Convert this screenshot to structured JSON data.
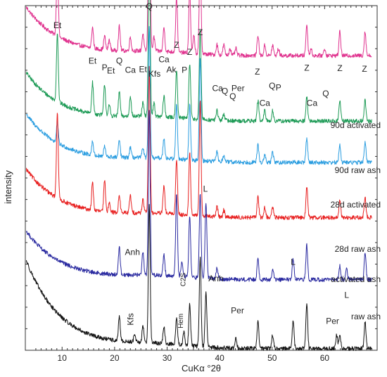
{
  "chart_data": {
    "type": "line",
    "title": "",
    "xlabel": "CuKα °2θ",
    "ylabel": "intensity",
    "xlim": [
      3,
      70
    ],
    "x_ticks": [
      10,
      20,
      30,
      40,
      50,
      60
    ],
    "y_ticks_shown": false,
    "grid": false,
    "series": [
      {
        "name": "90d activated",
        "color": "#e0338f",
        "baseline": 0.855,
        "low_decay": 0.14,
        "peaks": [
          [
            9.1,
            0.22
          ],
          [
            15.8,
            0.06
          ],
          [
            18.1,
            0.04
          ],
          [
            19.0,
            0.03
          ],
          [
            20.9,
            0.07
          ],
          [
            23.0,
            0.04
          ],
          [
            25.4,
            0.05
          ],
          [
            26.6,
            0.63
          ],
          [
            27.5,
            0.04
          ],
          [
            29.4,
            0.07
          ],
          [
            31.8,
            0.16
          ],
          [
            34.3,
            0.18
          ],
          [
            35.1,
            0.05
          ],
          [
            36.3,
            0.29
          ],
          [
            39.5,
            0.03
          ],
          [
            40.8,
            0.03
          ],
          [
            42.0,
            0.02
          ],
          [
            43.1,
            0.02
          ],
          [
            47.3,
            0.06
          ],
          [
            48.6,
            0.03
          ],
          [
            50.1,
            0.03
          ],
          [
            51.2,
            0.02
          ],
          [
            56.6,
            0.09
          ],
          [
            57.4,
            0.02
          ],
          [
            60.0,
            0.02
          ],
          [
            62.9,
            0.07
          ],
          [
            67.7,
            0.07
          ]
        ]
      },
      {
        "name": "90d raw ash",
        "color": "#1c9a55",
        "baseline": 0.665,
        "low_decay": 0.14,
        "peaks": [
          [
            9.1,
            0.2
          ],
          [
            15.8,
            0.09
          ],
          [
            18.1,
            0.09
          ],
          [
            19.0,
            0.03
          ],
          [
            20.9,
            0.07
          ],
          [
            23.0,
            0.06
          ],
          [
            25.4,
            0.04
          ],
          [
            26.6,
            0.5
          ],
          [
            27.5,
            0.04
          ],
          [
            29.4,
            0.06
          ],
          [
            31.8,
            0.14
          ],
          [
            34.3,
            0.16
          ],
          [
            36.3,
            0.26
          ],
          [
            39.5,
            0.03
          ],
          [
            40.8,
            0.02
          ],
          [
            47.3,
            0.06
          ],
          [
            48.6,
            0.03
          ],
          [
            50.1,
            0.03
          ],
          [
            56.6,
            0.07
          ],
          [
            62.9,
            0.06
          ],
          [
            67.7,
            0.06
          ]
        ]
      },
      {
        "name": "28d activated",
        "color": "#2a9de0",
        "baseline": 0.545,
        "low_decay": 0.14,
        "peaks": [
          [
            9.1,
            0.06
          ],
          [
            15.8,
            0.04
          ],
          [
            18.1,
            0.03
          ],
          [
            20.9,
            0.05
          ],
          [
            23.0,
            0.03
          ],
          [
            25.4,
            0.03
          ],
          [
            26.6,
            0.38
          ],
          [
            29.4,
            0.06
          ],
          [
            31.8,
            0.16
          ],
          [
            34.3,
            0.16
          ],
          [
            36.3,
            0.3
          ],
          [
            39.5,
            0.03
          ],
          [
            40.8,
            0.02
          ],
          [
            47.3,
            0.05
          ],
          [
            48.6,
            0.02
          ],
          [
            50.1,
            0.03
          ],
          [
            56.6,
            0.07
          ],
          [
            62.9,
            0.05
          ],
          [
            67.7,
            0.06
          ]
        ]
      },
      {
        "name": "28d raw ash",
        "color": "#e82222",
        "baseline": 0.385,
        "low_decay": 0.14,
        "peaks": [
          [
            9.1,
            0.25
          ],
          [
            15.8,
            0.08
          ],
          [
            18.1,
            0.09
          ],
          [
            19.0,
            0.03
          ],
          [
            20.9,
            0.05
          ],
          [
            23.0,
            0.05
          ],
          [
            25.4,
            0.04
          ],
          [
            26.6,
            0.42
          ],
          [
            29.4,
            0.08
          ],
          [
            31.8,
            0.16
          ],
          [
            34.3,
            0.18
          ],
          [
            36.3,
            0.33
          ],
          [
            39.5,
            0.03
          ],
          [
            40.8,
            0.02
          ],
          [
            47.3,
            0.06
          ],
          [
            48.6,
            0.03
          ],
          [
            50.1,
            0.03
          ],
          [
            56.6,
            0.09
          ],
          [
            62.9,
            0.05
          ],
          [
            67.7,
            0.06
          ]
        ]
      },
      {
        "name": "activated ash",
        "color": "#2a2aa0",
        "baseline": 0.205,
        "low_decay": 0.14,
        "peaks": [
          [
            20.9,
            0.08
          ],
          [
            25.4,
            0.07
          ],
          [
            26.6,
            0.48
          ],
          [
            29.4,
            0.06
          ],
          [
            31.8,
            0.24
          ],
          [
            32.8,
            0.04
          ],
          [
            34.3,
            0.18
          ],
          [
            36.3,
            0.24
          ],
          [
            37.4,
            0.22
          ],
          [
            39.5,
            0.03
          ],
          [
            47.3,
            0.06
          ],
          [
            50.1,
            0.03
          ],
          [
            54.0,
            0.06
          ],
          [
            56.6,
            0.1
          ],
          [
            62.9,
            0.04
          ],
          [
            64.2,
            0.03
          ],
          [
            67.7,
            0.08
          ]
        ]
      },
      {
        "name": "raw ash",
        "color": "#111111",
        "baseline": 0.005,
        "low_decay": 0.255,
        "peaks": [
          [
            20.9,
            0.07
          ],
          [
            23.8,
            0.02
          ],
          [
            25.4,
            0.05
          ],
          [
            26.6,
            0.4
          ],
          [
            29.4,
            0.05
          ],
          [
            31.8,
            0.08
          ],
          [
            33.2,
            0.04
          ],
          [
            34.3,
            0.12
          ],
          [
            36.3,
            0.26
          ],
          [
            37.4,
            0.16
          ],
          [
            43.1,
            0.03
          ],
          [
            47.3,
            0.08
          ],
          [
            50.1,
            0.04
          ],
          [
            54.0,
            0.08
          ],
          [
            56.6,
            0.13
          ],
          [
            62.3,
            0.04
          ],
          [
            62.9,
            0.04
          ],
          [
            67.7,
            0.08
          ]
        ]
      }
    ],
    "series_labels": [
      "90d activated",
      "90d raw ash",
      "28d activated",
      "28d raw ash",
      "activated ash",
      "raw ash"
    ],
    "annotations": [
      {
        "text": "Et",
        "x": 9.1,
        "level": 0.935
      },
      {
        "text": "Et",
        "x": 15.8,
        "level": 0.832
      },
      {
        "text": "Q",
        "x": 20.9,
        "level": 0.832
      },
      {
        "text": "P",
        "x": 18.1,
        "level": 0.812
      },
      {
        "text": "Et",
        "x": 19.3,
        "level": 0.803
      },
      {
        "text": "Ca",
        "x": 23.0,
        "level": 0.805
      },
      {
        "text": "Et",
        "x": 25.4,
        "level": 0.807
      },
      {
        "text": "Q",
        "x": 26.6,
        "level": 0.99
      },
      {
        "text": "Kfs",
        "x": 27.6,
        "level": 0.794
      },
      {
        "text": "Ca",
        "x": 29.4,
        "level": 0.836
      },
      {
        "text": "Ak",
        "x": 30.8,
        "level": 0.806
      },
      {
        "text": "Z",
        "x": 31.8,
        "level": 0.878
      },
      {
        "text": "P",
        "x": 33.3,
        "level": 0.805
      },
      {
        "text": "Z",
        "x": 34.3,
        "level": 0.857
      },
      {
        "text": "Z",
        "x": 36.3,
        "level": 0.914
      },
      {
        "text": "Ca",
        "x": 39.6,
        "level": 0.752
      },
      {
        "text": "Q",
        "x": 41.0,
        "level": 0.744
      },
      {
        "text": "Per",
        "x": 43.5,
        "level": 0.752
      },
      {
        "text": "Q",
        "x": 42.5,
        "level": 0.729
      },
      {
        "text": "Z",
        "x": 47.2,
        "level": 0.8
      },
      {
        "text": "Ca",
        "x": 48.6,
        "level": 0.709
      },
      {
        "text": "Q",
        "x": 50.0,
        "level": 0.759
      },
      {
        "text": "P",
        "x": 51.2,
        "level": 0.754
      },
      {
        "text": "Z",
        "x": 56.6,
        "level": 0.811
      },
      {
        "text": "Ca",
        "x": 57.6,
        "level": 0.709
      },
      {
        "text": "Q",
        "x": 60.2,
        "level": 0.737
      },
      {
        "text": "Z",
        "x": 62.9,
        "level": 0.81
      },
      {
        "text": "Z",
        "x": 67.6,
        "level": 0.808
      },
      {
        "text": "L",
        "x": 37.3,
        "level": 0.46
      },
      {
        "text": "Anh",
        "x": 23.4,
        "level": 0.277
      },
      {
        "text": "C2S",
        "x": 33.5,
        "level": 0.205,
        "rotated": true,
        "small": true
      },
      {
        "text": "Anh",
        "x": 39.3,
        "level": 0.2
      },
      {
        "text": "L",
        "x": 54.0,
        "level": 0.248
      },
      {
        "text": "L",
        "x": 64.2,
        "level": 0.152
      },
      {
        "text": "Kfs",
        "x": 23.6,
        "level": 0.09,
        "rotated": true
      },
      {
        "text": "Hem",
        "x": 33.0,
        "level": 0.085,
        "rotated": true,
        "small": true
      },
      {
        "text": "Per",
        "x": 43.4,
        "level": 0.107
      },
      {
        "text": "Per",
        "x": 61.5,
        "level": 0.077
      }
    ]
  }
}
